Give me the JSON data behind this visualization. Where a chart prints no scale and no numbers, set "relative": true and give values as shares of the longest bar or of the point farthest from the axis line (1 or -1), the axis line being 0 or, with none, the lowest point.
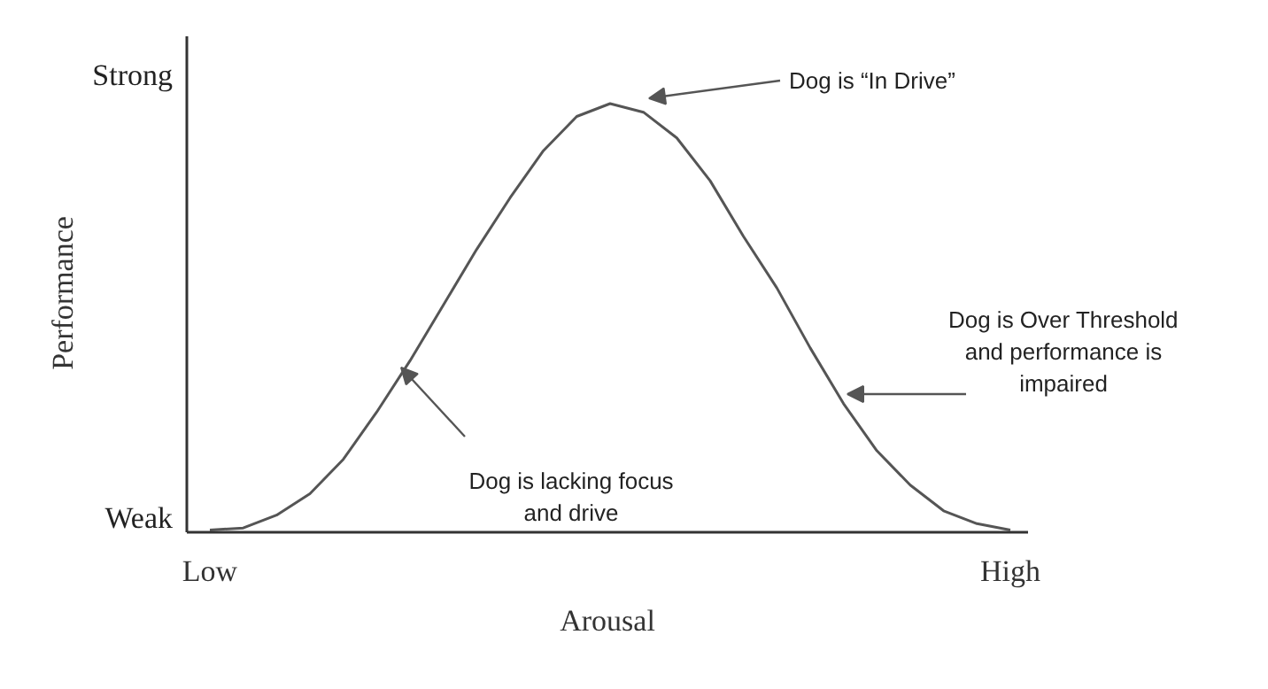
{
  "chart_data": {
    "type": "line",
    "relative": true,
    "xlabel": "Arousal",
    "ylabel": "Performance",
    "color": "#555555",
    "categories": [
      "Low",
      null,
      null,
      null,
      null,
      null,
      null,
      null,
      null,
      null,
      null,
      null,
      null,
      null,
      null,
      null,
      null,
      null,
      null,
      null,
      null,
      null,
      null,
      null,
      "High"
    ],
    "values": [
      0.005,
      0.01,
      0.04,
      0.09,
      0.17,
      0.28,
      0.4,
      0.53,
      0.66,
      0.78,
      0.89,
      0.97,
      1.0,
      0.98,
      0.92,
      0.82,
      0.69,
      0.57,
      0.43,
      0.3,
      0.19,
      0.11,
      0.05,
      0.02,
      0.005
    ],
    "annotations": [
      "Strong",
      "Weak",
      "Dog is “In Drive”",
      "Dog is Over Threshold\nand performance is\nimpaired",
      "Dog is lacking focus\nand drive"
    ]
  }
}
